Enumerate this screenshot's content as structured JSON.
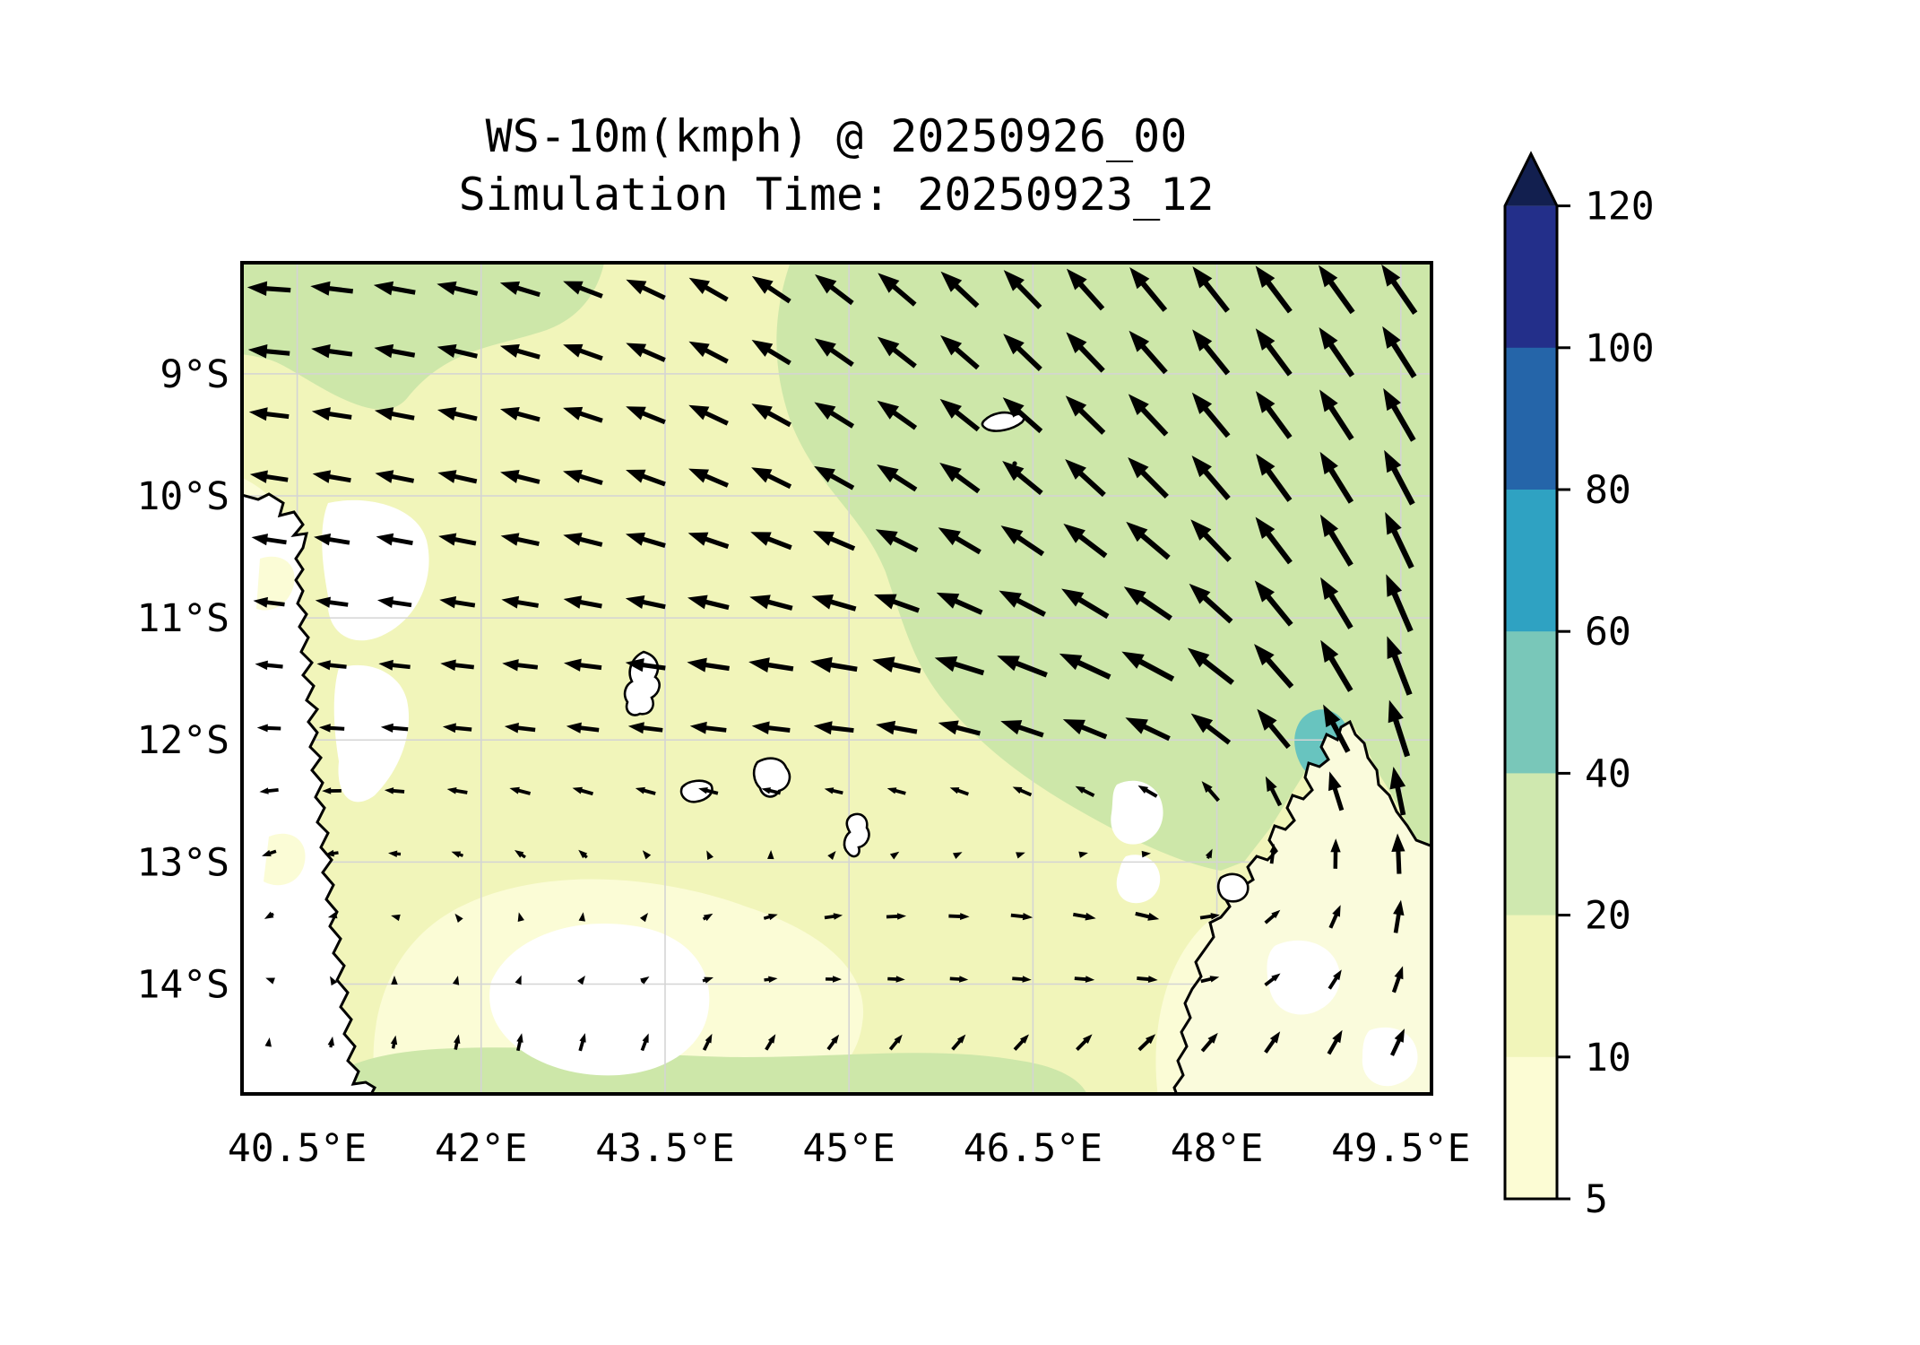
{
  "title": {
    "line1": "WS-10m(kmph) @ 20250926_00",
    "line2": "Simulation Time: 20250923_12"
  },
  "axes": {
    "x_ticks": [
      {
        "label": "40.5°E",
        "lon": 40.5
      },
      {
        "label": "42°E",
        "lon": 42.0
      },
      {
        "label": "43.5°E",
        "lon": 43.5
      },
      {
        "label": "45°E",
        "lon": 45.0
      },
      {
        "label": "46.5°E",
        "lon": 46.5
      },
      {
        "label": "48°E",
        "lon": 48.0
      },
      {
        "label": "49.5°E",
        "lon": 49.5
      }
    ],
    "y_ticks": [
      {
        "label": "9°S",
        "lat": 9.0
      },
      {
        "label": "10°S",
        "lat": 10.0
      },
      {
        "label": "11°S",
        "lat": 11.0
      },
      {
        "label": "12°S",
        "lat": 12.0
      },
      {
        "label": "13°S",
        "lat": 13.0
      },
      {
        "label": "14°S",
        "lat": 14.0
      }
    ]
  },
  "colorbar": {
    "ticks": [
      {
        "label": "120",
        "value": 120
      },
      {
        "label": "100",
        "value": 100
      },
      {
        "label": "80",
        "value": 80
      },
      {
        "label": "60",
        "value": 60
      },
      {
        "label": "40",
        "value": 40
      },
      {
        "label": "20",
        "value": 20
      },
      {
        "label": "10",
        "value": 10
      },
      {
        "label": "5",
        "value": 5
      }
    ],
    "band_colors_top_to_bottom": [
      "#232f8a",
      "#2565a9",
      "#2fa2c2",
      "#79c7b9",
      "#cfe8af",
      "#f1f5ba",
      "#fcfcd4"
    ],
    "extend_above_color": "#121f4f",
    "outline_color": "#000000"
  },
  "chart_data": {
    "type": "map_contourf_quiver",
    "variable": "WS-10m",
    "units": "kmph",
    "valid_time": "20250926_00",
    "simulation_time": "20250923_12",
    "lon_extent_deg_e": [
      40.05,
      49.75
    ],
    "lat_extent_deg_s": [
      8.09,
      14.9
    ],
    "contour_levels_kmph": [
      5,
      10,
      20,
      40,
      60,
      80,
      100,
      120
    ],
    "fill_colors": {
      "below_5": "#ffffff",
      "5_10": "#fbfcd6",
      "10_20": "#f1f5ba",
      "20_40": "#cde7a9",
      "40_60": "#68c4bf",
      "land": "#ffffff",
      "madagascar_land": "#fafbdc"
    },
    "grid_on": true,
    "grid_color": "#d4d4d4",
    "coastline_color": "#000000",
    "arrow_color": "#000000",
    "wind_field": {
      "note": "control grid of wind vectors [u_east, v_north], arrow-length pixel units",
      "lons_e": [
        40.3,
        42.5,
        45.0,
        47.5,
        49.7
      ],
      "lats_s": [
        8.3,
        10.0,
        11.7,
        13.3,
        14.2,
        14.8
      ],
      "uv": [
        [
          [
            -44,
            3
          ],
          [
            -40,
            13
          ],
          [
            -38,
            30
          ],
          [
            -36,
            44
          ],
          [
            -34,
            50
          ]
        ],
        [
          [
            -38,
            6
          ],
          [
            -40,
            10
          ],
          [
            -40,
            22
          ],
          [
            -40,
            40
          ],
          [
            -27,
            57
          ]
        ],
        [
          [
            -26,
            2
          ],
          [
            -36,
            3
          ],
          [
            -50,
            5
          ],
          [
            -55,
            26
          ],
          [
            -18,
            64
          ]
        ],
        [
          [
            -11,
            -7
          ],
          [
            -3,
            10
          ],
          [
            20,
            3
          ],
          [
            25,
            -7
          ],
          [
            2,
            40
          ]
        ],
        [
          [
            0,
            4
          ],
          [
            6,
            8
          ],
          [
            16,
            -2
          ],
          [
            20,
            0
          ],
          [
            10,
            26
          ]
        ],
        [
          [
            3,
            15
          ],
          [
            2,
            31
          ],
          [
            6,
            35
          ],
          [
            13,
            35
          ],
          [
            15,
            31
          ]
        ]
      ]
    }
  }
}
